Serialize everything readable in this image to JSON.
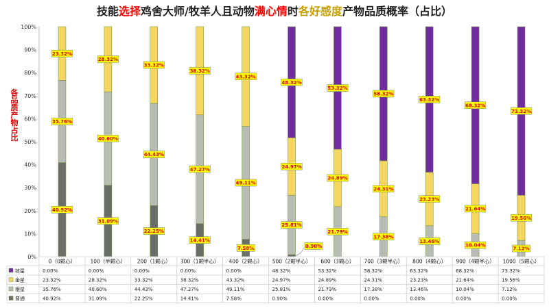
{
  "title": {
    "parts": [
      {
        "text": "技能",
        "color": "#222222"
      },
      {
        "text": "选择",
        "color": "#ff0000"
      },
      {
        "text": "鸡舍大师/牧羊人且动物",
        "color": "#222222"
      },
      {
        "text": "满心情",
        "color": "#ff0000"
      },
      {
        "text": "时",
        "color": "#222222"
      },
      {
        "text": "各好感度",
        "color": "#c9a000"
      },
      {
        "text": "产物品质概率（占比）",
        "color": "#222222"
      }
    ]
  },
  "chart_data": {
    "type": "bar",
    "stacked": true,
    "percent": true,
    "ylabel": "各品质产物占比",
    "ylim": [
      0,
      100
    ],
    "yticks": [
      "0%",
      "10%",
      "20%",
      "30%",
      "40%",
      "50%",
      "60%",
      "70%",
      "80%",
      "90%",
      "100%"
    ],
    "categories": [
      "0（0颗心）",
      "100（半颗心）",
      "200（1颗心）",
      "300（1颗半心）",
      "400（2颗心）",
      "500（2颗半心）",
      "600（3颗心）",
      "700（3颗半心）",
      "800（4颗心）",
      "900（4颗半心）",
      "1000（5颗心）"
    ],
    "series": [
      {
        "name": "普通",
        "color": "#6b6e68",
        "values": [
          40.92,
          31.09,
          22.25,
          14.41,
          7.58,
          0.9,
          0.0,
          0.0,
          0.0,
          0.0,
          0.0
        ]
      },
      {
        "name": "银星",
        "color": "#b8bcb3",
        "values": [
          35.76,
          40.6,
          44.43,
          47.27,
          49.11,
          25.81,
          21.79,
          17.38,
          13.46,
          10.04,
          7.12
        ]
      },
      {
        "name": "金星",
        "color": "#f5d660",
        "values": [
          23.32,
          28.32,
          33.32,
          38.32,
          43.32,
          24.97,
          24.89,
          24.31,
          23.23,
          21.64,
          19.56
        ]
      },
      {
        "name": "铱星",
        "color": "#6f2c9f",
        "values": [
          0.0,
          0.0,
          0.0,
          0.0,
          0.0,
          48.32,
          53.32,
          58.32,
          63.32,
          68.32,
          73.32
        ]
      }
    ],
    "table_rows": [
      {
        "name": "铱星",
        "cells": [
          "0.00%",
          "0.00%",
          "0.00%",
          "0.00%",
          "0.00%",
          "48.32%",
          "53.32%",
          "58.32%",
          "63.32%",
          "68.32%",
          "73.32%"
        ]
      },
      {
        "name": "金星",
        "cells": [
          "23.32%",
          "28.32%",
          "33.32%",
          "38.32%",
          "43.32%",
          "24.97%",
          "24.89%",
          "24.31%",
          "23.23%",
          "21.64%",
          "19.56%"
        ]
      },
      {
        "name": "银星",
        "cells": [
          "35.76%",
          "40.60%",
          "44.43%",
          "47.27%",
          "49.11%",
          "25.81%",
          "21.79%",
          "17.38%",
          "13.46%",
          "10.04%",
          "7.12%"
        ]
      },
      {
        "name": "普通",
        "cells": [
          "40.92%",
          "31.09%",
          "22.25%",
          "14.41%",
          "7.58%",
          "0.90%",
          "0.00%",
          "0.00%",
          "0.00%",
          "0.00%",
          "0.00%"
        ]
      }
    ],
    "legend": "table-left",
    "grid": false
  }
}
